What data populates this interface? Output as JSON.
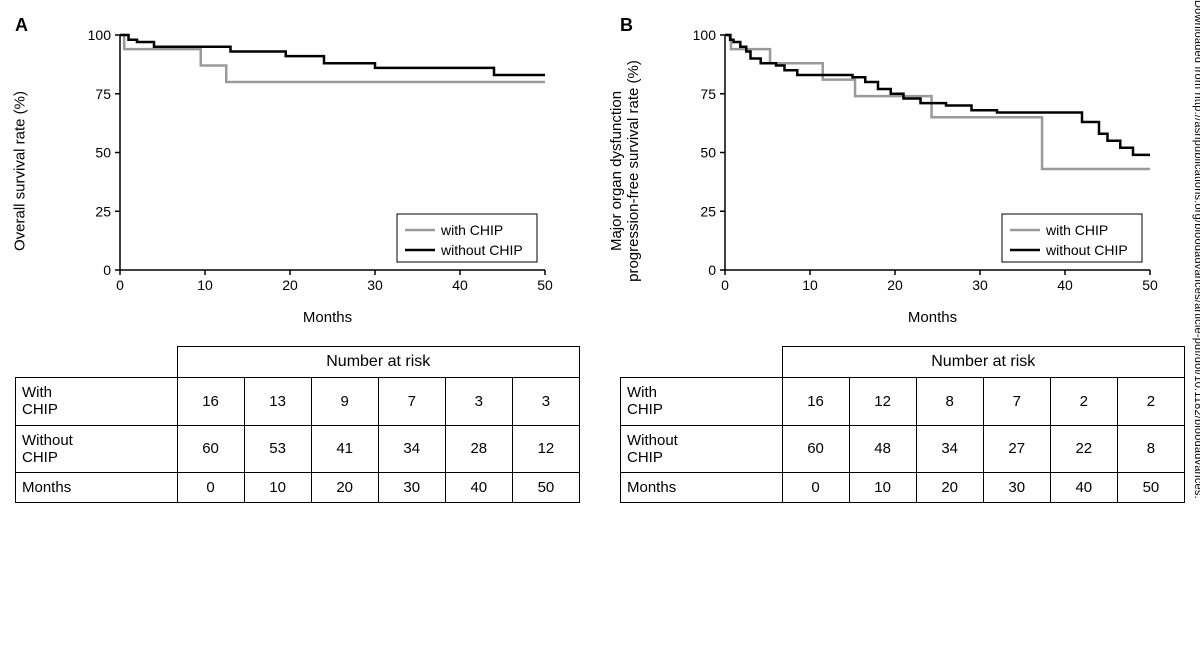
{
  "panels": [
    {
      "label": "A",
      "ylabel": "Overall survival rate (%)",
      "xlabel": "Months",
      "chart": {
        "type": "kaplan-meier",
        "background_color": "#ffffff",
        "xlim": [
          0,
          50
        ],
        "xtick_step": 10,
        "ylim": [
          0,
          100
        ],
        "ytick_step": 25,
        "axis_color": "#000000",
        "line_width": 2.5,
        "series": [
          {
            "name": "with CHIP",
            "color": "#9a9a9a",
            "points": [
              [
                0,
                100
              ],
              [
                0.5,
                94
              ],
              [
                9,
                94
              ],
              [
                9.5,
                87
              ],
              [
                12,
                87
              ],
              [
                12.5,
                80
              ],
              [
                50,
                80
              ]
            ]
          },
          {
            "name": "without CHIP",
            "color": "#000000",
            "points": [
              [
                0,
                100
              ],
              [
                1,
                98
              ],
              [
                2,
                97
              ],
              [
                4,
                95
              ],
              [
                10,
                95
              ],
              [
                13,
                93
              ],
              [
                17,
                93
              ],
              [
                19.5,
                91
              ],
              [
                22,
                91
              ],
              [
                24,
                88
              ],
              [
                27,
                88
              ],
              [
                30,
                86
              ],
              [
                43,
                86
              ],
              [
                44,
                83
              ],
              [
                50,
                83
              ]
            ]
          }
        ],
        "legend": {
          "position": "right-lower",
          "items": [
            "with CHIP",
            "without CHIP"
          ]
        }
      },
      "risk_table": {
        "title": "Number at risk",
        "columns": [
          0,
          10,
          20,
          30,
          40,
          50
        ],
        "rows": [
          {
            "label": "With CHIP",
            "values": [
              16,
              13,
              9,
              7,
              3,
              3
            ]
          },
          {
            "label": "Without CHIP",
            "values": [
              60,
              53,
              41,
              34,
              28,
              12
            ]
          },
          {
            "label": "Months",
            "values": [
              0,
              10,
              20,
              30,
              40,
              50
            ]
          }
        ]
      }
    },
    {
      "label": "B",
      "ylabel": "Major organ dysfunction\nprogression-free survival rate (%)",
      "xlabel": "Months",
      "chart": {
        "type": "kaplan-meier",
        "background_color": "#ffffff",
        "xlim": [
          0,
          50
        ],
        "xtick_step": 10,
        "ylim": [
          0,
          100
        ],
        "ytick_step": 25,
        "axis_color": "#000000",
        "line_width": 2.5,
        "series": [
          {
            "name": "with CHIP",
            "color": "#9a9a9a",
            "points": [
              [
                0,
                100
              ],
              [
                0.7,
                94
              ],
              [
                5,
                94
              ],
              [
                5.3,
                88
              ],
              [
                11,
                88
              ],
              [
                11.5,
                81
              ],
              [
                15,
                81
              ],
              [
                15.3,
                74
              ],
              [
                24,
                74
              ],
              [
                24.3,
                65
              ],
              [
                37,
                65
              ],
              [
                37.3,
                43
              ],
              [
                50,
                43
              ]
            ]
          },
          {
            "name": "without CHIP",
            "color": "#000000",
            "points": [
              [
                0,
                100
              ],
              [
                0.6,
                98
              ],
              [
                1,
                97
              ],
              [
                1.8,
                95
              ],
              [
                2.5,
                93
              ],
              [
                3,
                90
              ],
              [
                4.2,
                88
              ],
              [
                6,
                87
              ],
              [
                7,
                85
              ],
              [
                8.5,
                83
              ],
              [
                13,
                83
              ],
              [
                15,
                82
              ],
              [
                16.5,
                80
              ],
              [
                18,
                77
              ],
              [
                19.5,
                75
              ],
              [
                21,
                73
              ],
              [
                23,
                71
              ],
              [
                26,
                70
              ],
              [
                29,
                68
              ],
              [
                32,
                67
              ],
              [
                41,
                67
              ],
              [
                42,
                63
              ],
              [
                44,
                58
              ],
              [
                45,
                55
              ],
              [
                46.5,
                52
              ],
              [
                48,
                49
              ],
              [
                50,
                49
              ]
            ]
          }
        ],
        "legend": {
          "position": "right-lower",
          "items": [
            "with CHIP",
            "without CHIP"
          ]
        }
      },
      "risk_table": {
        "title": "Number at risk",
        "columns": [
          0,
          10,
          20,
          30,
          40,
          50
        ],
        "rows": [
          {
            "label": "With CHIP",
            "values": [
              16,
              12,
              8,
              7,
              2,
              2
            ]
          },
          {
            "label": "Without CHIP",
            "values": [
              60,
              48,
              34,
              27,
              22,
              8
            ]
          },
          {
            "label": "Months",
            "values": [
              0,
              10,
              20,
              30,
              40,
              50
            ]
          }
        ]
      }
    }
  ],
  "watermark": "Downloaded from http://ashpublications.org/bloodadvances/article-pdf/doi/10.1182/bloodadvances."
}
